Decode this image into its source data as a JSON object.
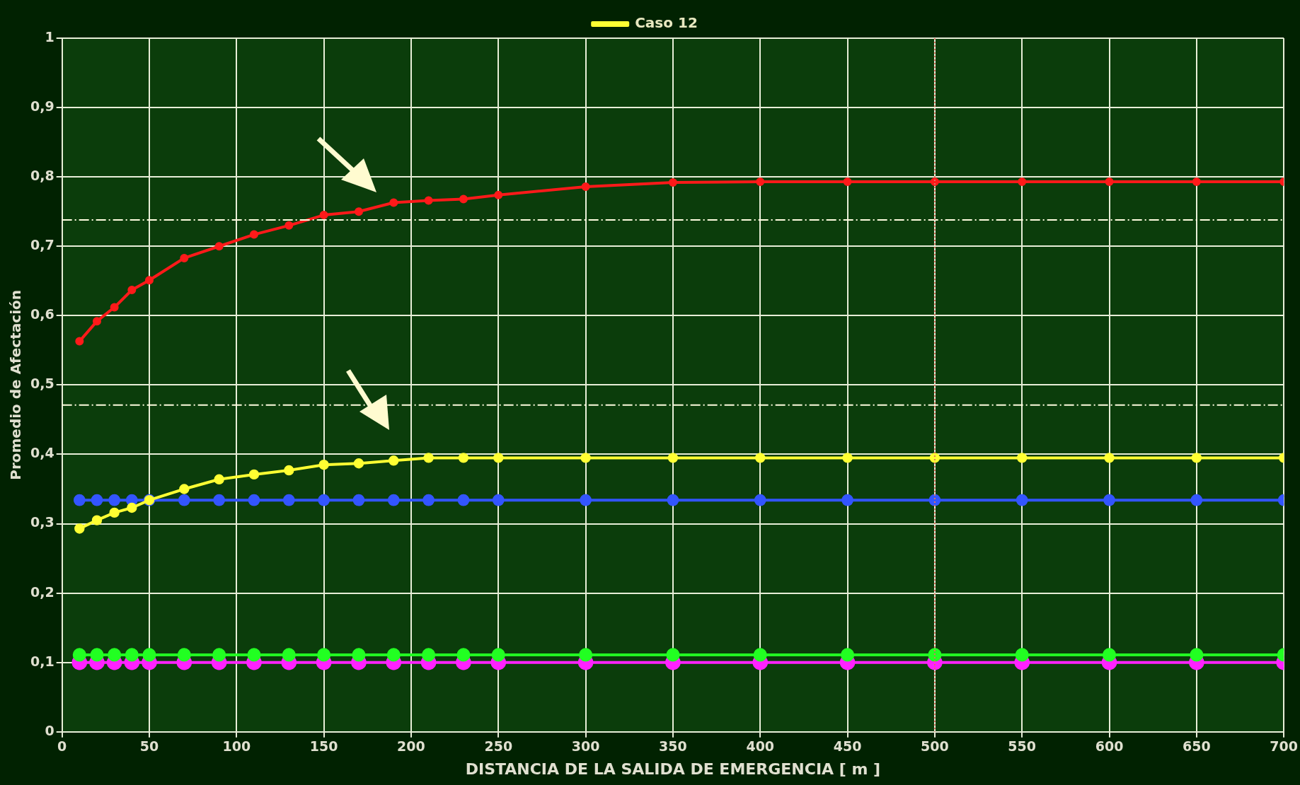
{
  "chart_data": {
    "type": "line",
    "xlabel": "DISTANCIA DE LA SALIDA DE EMERGENCIA [ m ]",
    "ylabel": "Promedio de Afectación",
    "x": [
      10,
      20,
      30,
      40,
      50,
      70,
      90,
      110,
      130,
      150,
      170,
      190,
      210,
      230,
      250,
      300,
      350,
      400,
      450,
      500,
      550,
      600,
      650,
      700
    ],
    "series": [
      {
        "color": "#ff1a1a",
        "values": [
          0.563,
          0.592,
          0.612,
          0.637,
          0.651,
          0.683,
          0.7,
          0.717,
          0.73,
          0.745,
          0.75,
          0.763,
          0.766,
          0.768,
          0.774,
          0.786,
          0.792,
          0.793,
          0.793,
          0.793,
          0.793,
          0.793,
          0.793,
          0.793
        ]
      },
      {
        "name": "Caso 12",
        "color": "#ffff33",
        "values": [
          0.293,
          0.305,
          0.316,
          0.323,
          0.334,
          0.35,
          0.364,
          0.371,
          0.377,
          0.385,
          0.387,
          0.391,
          0.395,
          0.395,
          0.395,
          0.395,
          0.395,
          0.395,
          0.395,
          0.395,
          0.395,
          0.395,
          0.395,
          0.395
        ]
      },
      {
        "color": "#3355ff",
        "values": [
          0.334,
          0.334,
          0.334,
          0.334,
          0.334,
          0.334,
          0.334,
          0.334,
          0.334,
          0.334,
          0.334,
          0.334,
          0.334,
          0.334,
          0.334,
          0.334,
          0.334,
          0.334,
          0.334,
          0.334,
          0.334,
          0.334,
          0.334,
          0.334
        ]
      },
      {
        "color": "#22ff22",
        "values": [
          0.111,
          0.111,
          0.111,
          0.111,
          0.111,
          0.111,
          0.111,
          0.111,
          0.111,
          0.111,
          0.111,
          0.111,
          0.111,
          0.111,
          0.111,
          0.111,
          0.111,
          0.111,
          0.111,
          0.111,
          0.111,
          0.111,
          0.111,
          0.111
        ]
      },
      {
        "color": "#ff22ff",
        "values": [
          0.1,
          0.1,
          0.1,
          0.1,
          0.1,
          0.1,
          0.1,
          0.1,
          0.1,
          0.1,
          0.1,
          0.1,
          0.1,
          0.1,
          0.1,
          0.1,
          0.1,
          0.1,
          0.1,
          0.1,
          0.1,
          0.1,
          0.1,
          0.1
        ]
      }
    ],
    "xlim": [
      0,
      700
    ],
    "xticks": [
      0,
      50,
      100,
      150,
      200,
      250,
      300,
      350,
      400,
      450,
      500,
      550,
      600,
      650,
      700
    ],
    "ylim": [
      0,
      1
    ],
    "yticks": [
      0,
      {
        "value": 0.1,
        "label": "0,1"
      },
      {
        "value": 0.2,
        "label": "0,2"
      },
      {
        "value": 0.3,
        "label": "0,3"
      },
      {
        "value": 0.4,
        "label": "0,4"
      },
      {
        "value": 0.5,
        "label": "0,5"
      },
      {
        "value": 0.6,
        "label": "0,6"
      },
      {
        "value": 0.7,
        "label": "0,7"
      },
      {
        "value": 0.8,
        "label": "0,8"
      },
      {
        "value": 0.9,
        "label": "0,9"
      },
      1
    ],
    "ref_lines": [
      {
        "axis": "y",
        "value": 0.738,
        "color": "#fffde0",
        "line_style": "dashdot"
      },
      {
        "axis": "y",
        "value": 0.471,
        "color": "#fffde0",
        "line_style": "dashdot"
      },
      {
        "axis": "x",
        "value": 500,
        "color": "#e07060",
        "line_style": "dotted"
      }
    ],
    "grid": true,
    "legend": "top",
    "marker": "circle",
    "line_style": "solid"
  }
}
